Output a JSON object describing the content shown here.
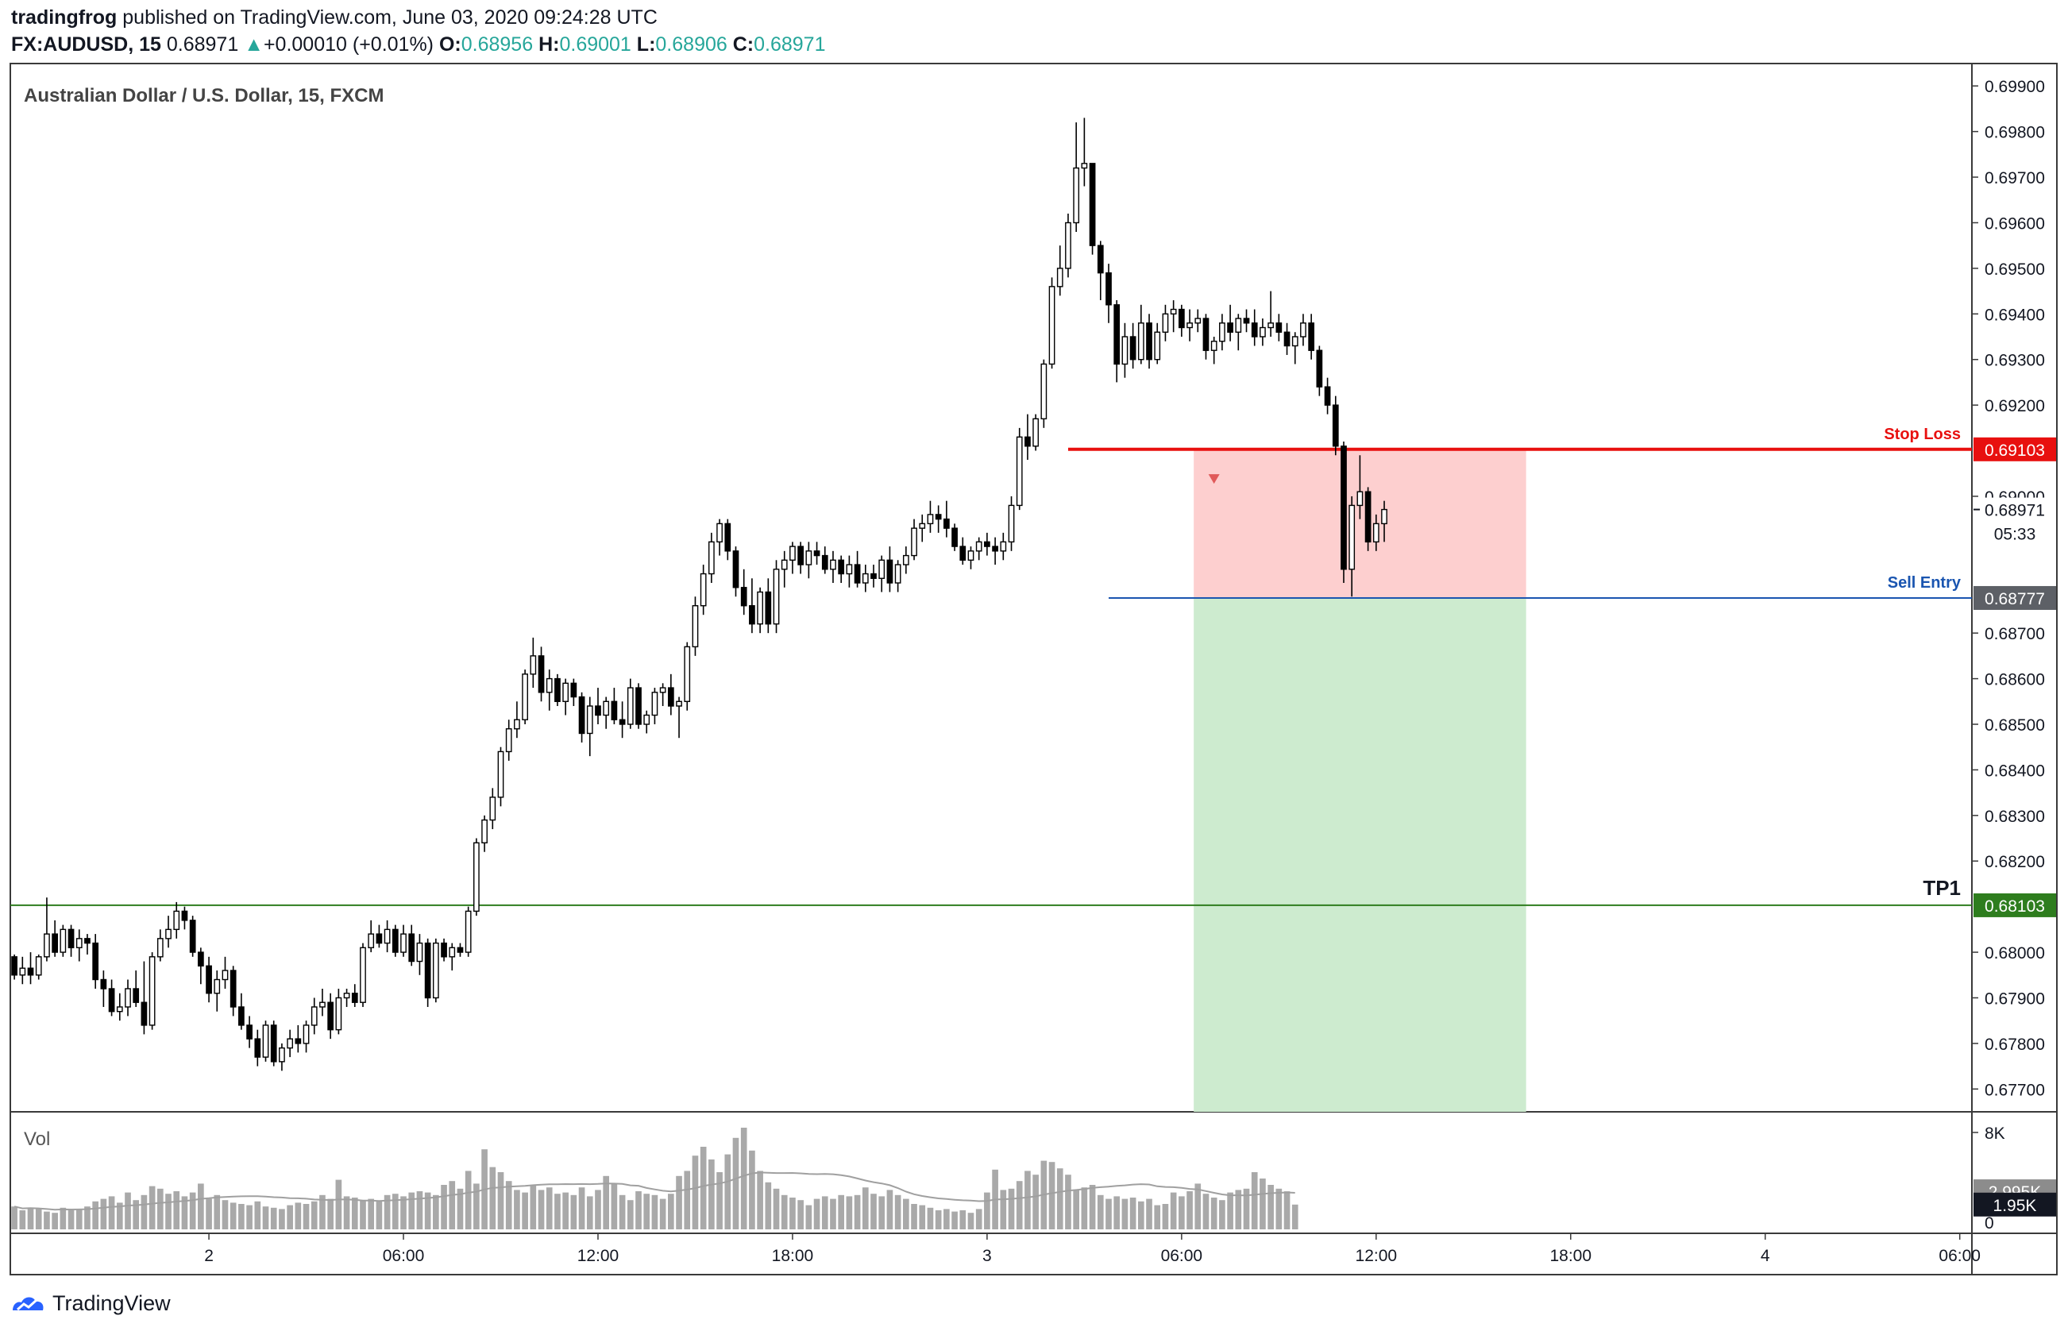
{
  "header": {
    "author": "tradingfrog",
    "published_text": "published on TradingView.com, June 03, 2020 09:24:28 UTC",
    "symbol": "FX:AUDUSD, 15",
    "last": "0.68971",
    "change_arrow": "▲",
    "change": "+0.00010 (+0.01%)",
    "o_label": "O:",
    "o_value": "0.68956",
    "h_label": "H:",
    "h_value": "0.69001",
    "l_label": "L:",
    "l_value": "0.68906",
    "c_label": "C:",
    "c_value": "0.68971"
  },
  "footer": {
    "brand": "TradingView",
    "logo_icon": "tradingview-logo-icon"
  },
  "colors": {
    "up_candle": "#ffffff",
    "down_candle": "#000000",
    "stop_loss": "#e8100f",
    "sell_entry": "#1a55b0",
    "tp1": "#2e7d1e",
    "risk_zone": "#fdcfcf",
    "reward_zone": "#cdebcf",
    "volume": "#a9a9a9"
  },
  "chart_data": {
    "type": "candlestick",
    "title": "Australian Dollar / U.S. Dollar, 15, FXCM",
    "y_axis": {
      "range": [
        0.6765,
        0.6993
      ],
      "ticks": [
        "0.69900",
        "0.69800",
        "0.69700",
        "0.69600",
        "0.69500",
        "0.69400",
        "0.69300",
        "0.69200",
        "0.69000",
        "0.68700",
        "0.68600",
        "0.68500",
        "0.68400",
        "0.68300",
        "0.68200",
        "0.68000",
        "0.67900",
        "0.67800",
        "0.67700"
      ],
      "price_tags": [
        {
          "label": "0.69103",
          "value": 0.69103,
          "color": "#e8100f"
        },
        {
          "label": "0.68971",
          "value": 0.68971,
          "color": "#ffffff",
          "text_color": "#131722"
        },
        {
          "label": "0.68777",
          "value": 0.68777,
          "color": "#5d6066"
        },
        {
          "label": "0.68103",
          "value": 0.68103,
          "color": "#2e7d1e"
        }
      ],
      "countdown": "05:33"
    },
    "x_axis": {
      "ticks": [
        "2",
        "06:00",
        "12:00",
        "18:00",
        "3",
        "06:00",
        "12:00",
        "18:00",
        "4",
        "06:00"
      ],
      "tick_bar_index": [
        24,
        48,
        72,
        96,
        120,
        144,
        168,
        192,
        216,
        240
      ],
      "bar_count_visible": 242
    },
    "levels": [
      {
        "name": "Stop Loss",
        "value": 0.69103,
        "from_bar": 130
      },
      {
        "name": "Sell Entry",
        "value": 0.68777,
        "from_bar": 135
      },
      {
        "name": "TP1",
        "value": 0.68103,
        "from_bar": 0
      }
    ],
    "position": {
      "type": "short",
      "entry": 0.68777,
      "stop": 0.69103,
      "target": 0.6765,
      "from_bar": 146,
      "to_bar": 186
    },
    "signal_marker": {
      "bar": 148,
      "value": 0.69038
    },
    "volume": {
      "label": "Vol",
      "ticks": [
        "8K",
        "0"
      ],
      "max": 8000,
      "tags": [
        {
          "label": "2.995K",
          "value": 2995,
          "color": "#8c8c8c"
        },
        {
          "label": "1.95K",
          "value": 1950,
          "color": "#131722"
        }
      ]
    },
    "candles": [
      [
        0.6799,
        0.67995,
        0.6794,
        0.6795
      ],
      [
        0.6795,
        0.6799,
        0.6793,
        0.67965
      ],
      [
        0.67965,
        0.68,
        0.6793,
        0.6795
      ],
      [
        0.6795,
        0.67995,
        0.6794,
        0.6799
      ],
      [
        0.6799,
        0.6812,
        0.6798,
        0.6804
      ],
      [
        0.6804,
        0.6807,
        0.6799,
        0.68
      ],
      [
        0.68,
        0.6806,
        0.6799,
        0.6805
      ],
      [
        0.6805,
        0.6806,
        0.6799,
        0.6801
      ],
      [
        0.6801,
        0.6805,
        0.6798,
        0.6803
      ],
      [
        0.6803,
        0.6804,
        0.67995,
        0.6802
      ],
      [
        0.6802,
        0.6804,
        0.6792,
        0.6794
      ],
      [
        0.6794,
        0.6796,
        0.6788,
        0.6792
      ],
      [
        0.6792,
        0.6794,
        0.6786,
        0.6787
      ],
      [
        0.6787,
        0.6791,
        0.6785,
        0.6788
      ],
      [
        0.6788,
        0.6794,
        0.6786,
        0.6792
      ],
      [
        0.6792,
        0.6796,
        0.6788,
        0.6789
      ],
      [
        0.6789,
        0.6798,
        0.6782,
        0.6784
      ],
      [
        0.6784,
        0.68,
        0.6783,
        0.6799
      ],
      [
        0.6799,
        0.6805,
        0.6798,
        0.6803
      ],
      [
        0.6803,
        0.6808,
        0.6801,
        0.6805
      ],
      [
        0.6805,
        0.6811,
        0.6803,
        0.6809
      ],
      [
        0.6809,
        0.681,
        0.6805,
        0.6807
      ],
      [
        0.6807,
        0.6808,
        0.6799,
        0.68
      ],
      [
        0.68,
        0.6801,
        0.6793,
        0.6797
      ],
      [
        0.6797,
        0.6799,
        0.6789,
        0.6791
      ],
      [
        0.6791,
        0.6796,
        0.6787,
        0.6794
      ],
      [
        0.6794,
        0.6799,
        0.6792,
        0.6796
      ],
      [
        0.6796,
        0.6797,
        0.6786,
        0.6788
      ],
      [
        0.6788,
        0.6791,
        0.6783,
        0.6784
      ],
      [
        0.6784,
        0.6786,
        0.6779,
        0.6781
      ],
      [
        0.6781,
        0.6783,
        0.6775,
        0.6777
      ],
      [
        0.6777,
        0.6785,
        0.6776,
        0.6784
      ],
      [
        0.6784,
        0.6785,
        0.6775,
        0.6776
      ],
      [
        0.6776,
        0.678,
        0.6774,
        0.6779
      ],
      [
        0.6779,
        0.6783,
        0.6777,
        0.6781
      ],
      [
        0.6781,
        0.6784,
        0.6778,
        0.678
      ],
      [
        0.678,
        0.6785,
        0.6778,
        0.6784
      ],
      [
        0.6784,
        0.679,
        0.6782,
        0.6788
      ],
      [
        0.6788,
        0.6792,
        0.6786,
        0.6789
      ],
      [
        0.6789,
        0.6791,
        0.6781,
        0.6783
      ],
      [
        0.6783,
        0.6792,
        0.6782,
        0.679
      ],
      [
        0.679,
        0.6792,
        0.6788,
        0.6791
      ],
      [
        0.6791,
        0.6793,
        0.6788,
        0.6789
      ],
      [
        0.6789,
        0.6802,
        0.6788,
        0.6801
      ],
      [
        0.6801,
        0.6807,
        0.68,
        0.6804
      ],
      [
        0.6804,
        0.6806,
        0.6801,
        0.6802
      ],
      [
        0.6802,
        0.6807,
        0.68,
        0.6805
      ],
      [
        0.6805,
        0.6806,
        0.6799,
        0.68
      ],
      [
        0.68,
        0.6806,
        0.6799,
        0.6804
      ],
      [
        0.6804,
        0.6806,
        0.6797,
        0.6798
      ],
      [
        0.6798,
        0.6804,
        0.6795,
        0.6802
      ],
      [
        0.6802,
        0.6803,
        0.6788,
        0.679
      ],
      [
        0.679,
        0.6803,
        0.6789,
        0.6802
      ],
      [
        0.6802,
        0.6803,
        0.6798,
        0.6799
      ],
      [
        0.6799,
        0.6802,
        0.6796,
        0.6801
      ],
      [
        0.6801,
        0.6802,
        0.6799,
        0.68
      ],
      [
        0.68,
        0.681,
        0.6799,
        0.6809
      ],
      [
        0.6809,
        0.6825,
        0.6808,
        0.6824
      ],
      [
        0.6824,
        0.683,
        0.6822,
        0.6829
      ],
      [
        0.6829,
        0.6836,
        0.6827,
        0.6834
      ],
      [
        0.6834,
        0.6845,
        0.6832,
        0.6844
      ],
      [
        0.6844,
        0.6851,
        0.6842,
        0.6849
      ],
      [
        0.6849,
        0.6855,
        0.6847,
        0.6851
      ],
      [
        0.6851,
        0.6862,
        0.685,
        0.6861
      ],
      [
        0.6861,
        0.6869,
        0.6858,
        0.6865
      ],
      [
        0.6865,
        0.6867,
        0.6855,
        0.6857
      ],
      [
        0.6857,
        0.6862,
        0.6853,
        0.686
      ],
      [
        0.686,
        0.6861,
        0.6854,
        0.6855
      ],
      [
        0.6855,
        0.686,
        0.6852,
        0.6859
      ],
      [
        0.6859,
        0.686,
        0.6854,
        0.6856
      ],
      [
        0.6856,
        0.6857,
        0.6846,
        0.6848
      ],
      [
        0.6848,
        0.6856,
        0.6843,
        0.6854
      ],
      [
        0.6854,
        0.6858,
        0.685,
        0.6852
      ],
      [
        0.6852,
        0.6856,
        0.6849,
        0.6855
      ],
      [
        0.6855,
        0.6858,
        0.685,
        0.6851
      ],
      [
        0.6851,
        0.6855,
        0.6847,
        0.685
      ],
      [
        0.685,
        0.686,
        0.6849,
        0.6858
      ],
      [
        0.6858,
        0.6859,
        0.6849,
        0.685
      ],
      [
        0.685,
        0.6853,
        0.6848,
        0.6852
      ],
      [
        0.6852,
        0.6858,
        0.685,
        0.6857
      ],
      [
        0.6857,
        0.6859,
        0.6854,
        0.6858
      ],
      [
        0.6858,
        0.6861,
        0.6852,
        0.6854
      ],
      [
        0.6854,
        0.6856,
        0.6847,
        0.6855
      ],
      [
        0.6855,
        0.6868,
        0.6853,
        0.6867
      ],
      [
        0.6867,
        0.6878,
        0.6865,
        0.6876
      ],
      [
        0.6876,
        0.6885,
        0.6874,
        0.6883
      ],
      [
        0.6883,
        0.6892,
        0.6881,
        0.689
      ],
      [
        0.689,
        0.6895,
        0.6887,
        0.6894
      ],
      [
        0.6894,
        0.6895,
        0.6886,
        0.6888
      ],
      [
        0.6888,
        0.6889,
        0.6878,
        0.688
      ],
      [
        0.688,
        0.6884,
        0.6874,
        0.6876
      ],
      [
        0.6876,
        0.6882,
        0.687,
        0.6872
      ],
      [
        0.6872,
        0.688,
        0.687,
        0.6879
      ],
      [
        0.6879,
        0.6882,
        0.687,
        0.6872
      ],
      [
        0.6872,
        0.6886,
        0.687,
        0.6884
      ],
      [
        0.6884,
        0.6888,
        0.688,
        0.6886
      ],
      [
        0.6886,
        0.689,
        0.6883,
        0.6889
      ],
      [
        0.6889,
        0.689,
        0.6883,
        0.6885
      ],
      [
        0.6885,
        0.689,
        0.6882,
        0.6888
      ],
      [
        0.6888,
        0.689,
        0.6885,
        0.6887
      ],
      [
        0.6887,
        0.6889,
        0.6883,
        0.6884
      ],
      [
        0.6884,
        0.6888,
        0.6881,
        0.6886
      ],
      [
        0.6886,
        0.6887,
        0.6881,
        0.6883
      ],
      [
        0.6883,
        0.6887,
        0.688,
        0.6885
      ],
      [
        0.6885,
        0.6888,
        0.688,
        0.6881
      ],
      [
        0.6881,
        0.6885,
        0.6879,
        0.6883
      ],
      [
        0.6883,
        0.6885,
        0.688,
        0.6882
      ],
      [
        0.6882,
        0.6887,
        0.6879,
        0.6886
      ],
      [
        0.6886,
        0.6889,
        0.6879,
        0.6881
      ],
      [
        0.6881,
        0.6886,
        0.6879,
        0.6885
      ],
      [
        0.6885,
        0.6889,
        0.6883,
        0.6887
      ],
      [
        0.6887,
        0.6895,
        0.6886,
        0.6893
      ],
      [
        0.6893,
        0.6896,
        0.689,
        0.6894
      ],
      [
        0.6894,
        0.6899,
        0.6892,
        0.6896
      ],
      [
        0.6896,
        0.6898,
        0.6892,
        0.6895
      ],
      [
        0.6895,
        0.6899,
        0.6891,
        0.6893
      ],
      [
        0.6893,
        0.6894,
        0.6888,
        0.6889
      ],
      [
        0.6889,
        0.6891,
        0.6885,
        0.6886
      ],
      [
        0.6886,
        0.6889,
        0.6884,
        0.6888
      ],
      [
        0.6888,
        0.6891,
        0.6886,
        0.689
      ],
      [
        0.689,
        0.6892,
        0.6887,
        0.6889
      ],
      [
        0.6889,
        0.6891,
        0.6885,
        0.6888
      ],
      [
        0.6888,
        0.6892,
        0.6886,
        0.689
      ],
      [
        0.689,
        0.69,
        0.6888,
        0.6898
      ],
      [
        0.6898,
        0.6915,
        0.6897,
        0.6913
      ],
      [
        0.6913,
        0.6918,
        0.6908,
        0.6911
      ],
      [
        0.6911,
        0.6918,
        0.691,
        0.6917
      ],
      [
        0.6917,
        0.693,
        0.6915,
        0.6929
      ],
      [
        0.6929,
        0.6948,
        0.6928,
        0.6946
      ],
      [
        0.6946,
        0.6955,
        0.6944,
        0.695
      ],
      [
        0.695,
        0.6962,
        0.6948,
        0.696
      ],
      [
        0.696,
        0.6982,
        0.6958,
        0.6972
      ],
      [
        0.6972,
        0.6983,
        0.6968,
        0.6973
      ],
      [
        0.6973,
        0.6973,
        0.6953,
        0.6955
      ],
      [
        0.6955,
        0.6956,
        0.6943,
        0.6949
      ],
      [
        0.6949,
        0.6951,
        0.6938,
        0.6942
      ],
      [
        0.6942,
        0.6943,
        0.6925,
        0.6929
      ],
      [
        0.6929,
        0.6938,
        0.6926,
        0.6935
      ],
      [
        0.6935,
        0.6938,
        0.6928,
        0.693
      ],
      [
        0.693,
        0.6942,
        0.6929,
        0.6938
      ],
      [
        0.6938,
        0.694,
        0.6928,
        0.693
      ],
      [
        0.693,
        0.6938,
        0.6929,
        0.6936
      ],
      [
        0.6936,
        0.6942,
        0.6934,
        0.694
      ],
      [
        0.694,
        0.6943,
        0.6936,
        0.6941
      ],
      [
        0.6941,
        0.6942,
        0.6935,
        0.6937
      ],
      [
        0.6937,
        0.6941,
        0.6934,
        0.6938
      ],
      [
        0.6938,
        0.6941,
        0.6936,
        0.6939
      ],
      [
        0.6939,
        0.694,
        0.693,
        0.6932
      ],
      [
        0.6932,
        0.6935,
        0.6929,
        0.6934
      ],
      [
        0.6934,
        0.694,
        0.6932,
        0.6938
      ],
      [
        0.6938,
        0.6942,
        0.6934,
        0.6936
      ],
      [
        0.6936,
        0.694,
        0.6932,
        0.6939
      ],
      [
        0.6939,
        0.6941,
        0.6936,
        0.6938
      ],
      [
        0.6938,
        0.6941,
        0.6933,
        0.6935
      ],
      [
        0.6935,
        0.6939,
        0.6933,
        0.6937
      ],
      [
        0.6937,
        0.6945,
        0.6935,
        0.6938
      ],
      [
        0.6938,
        0.694,
        0.6934,
        0.6936
      ],
      [
        0.6936,
        0.6938,
        0.6931,
        0.6933
      ],
      [
        0.6933,
        0.6936,
        0.6929,
        0.6935
      ],
      [
        0.6935,
        0.694,
        0.6933,
        0.6938
      ],
      [
        0.6938,
        0.694,
        0.693,
        0.6932
      ],
      [
        0.6932,
        0.6933,
        0.6922,
        0.6924
      ],
      [
        0.6924,
        0.6926,
        0.6918,
        0.692
      ],
      [
        0.692,
        0.6922,
        0.6909,
        0.6911
      ],
      [
        0.6911,
        0.6912,
        0.6881,
        0.6884
      ],
      [
        0.6884,
        0.69,
        0.6878,
        0.6898
      ],
      [
        0.6898,
        0.6909,
        0.6895,
        0.6901
      ],
      [
        0.6901,
        0.6902,
        0.6888,
        0.689
      ],
      [
        0.689,
        0.6896,
        0.6888,
        0.6894
      ],
      [
        0.6894,
        0.6899,
        0.689,
        0.68971
      ]
    ],
    "volumes": [
      1800,
      1500,
      1700,
      1600,
      1400,
      1300,
      1700,
      1500,
      1600,
      1800,
      2200,
      2400,
      2600,
      2100,
      2900,
      2300,
      2700,
      3400,
      3200,
      2800,
      3000,
      2600,
      2900,
      3600,
      2400,
      2700,
      2300,
      2100,
      2000,
      1900,
      2200,
      1800,
      1700,
      1600,
      1900,
      2100,
      2000,
      2200,
      2700,
      2400,
      3900,
      2600,
      2500,
      2300,
      2400,
      2200,
      2700,
      2800,
      2600,
      2900,
      3000,
      2900,
      2700,
      3500,
      3800,
      3200,
      4600,
      3600,
      6300,
      4900,
      4500,
      3800,
      3100,
      2900,
      3500,
      3100,
      3300,
      2800,
      2900,
      2700,
      3300,
      2600,
      3100,
      4200,
      3600,
      2700,
      2300,
      3000,
      2800,
      2700,
      2400,
      2800,
      4200,
      4600,
      5800,
      6500,
      5500,
      4500,
      5900,
      7200,
      8000,
      6200,
      4600,
      3700,
      3200,
      2700,
      2500,
      2300,
      1900,
      2400,
      2600,
      2400,
      2700,
      2600,
      2700,
      3300,
      2800,
      2600,
      3100,
      2700,
      2400,
      2000,
      1900,
      1700,
      1500,
      1600,
      1400,
      1500,
      1300,
      1600,
      2900,
      4700,
      3100,
      3200,
      3800,
      4600,
      4300,
      5400,
      5300,
      4800,
      4300,
      3100,
      3300,
      3500,
      2700,
      2400,
      2600,
      2400,
      2500,
      2200,
      2400,
      1900,
      2000,
      2900,
      2600,
      3000,
      3600,
      2800,
      2500,
      2300,
      2900,
      3100,
      3200,
      4500,
      4000,
      3500,
      3200,
      2995,
      1950
    ]
  }
}
